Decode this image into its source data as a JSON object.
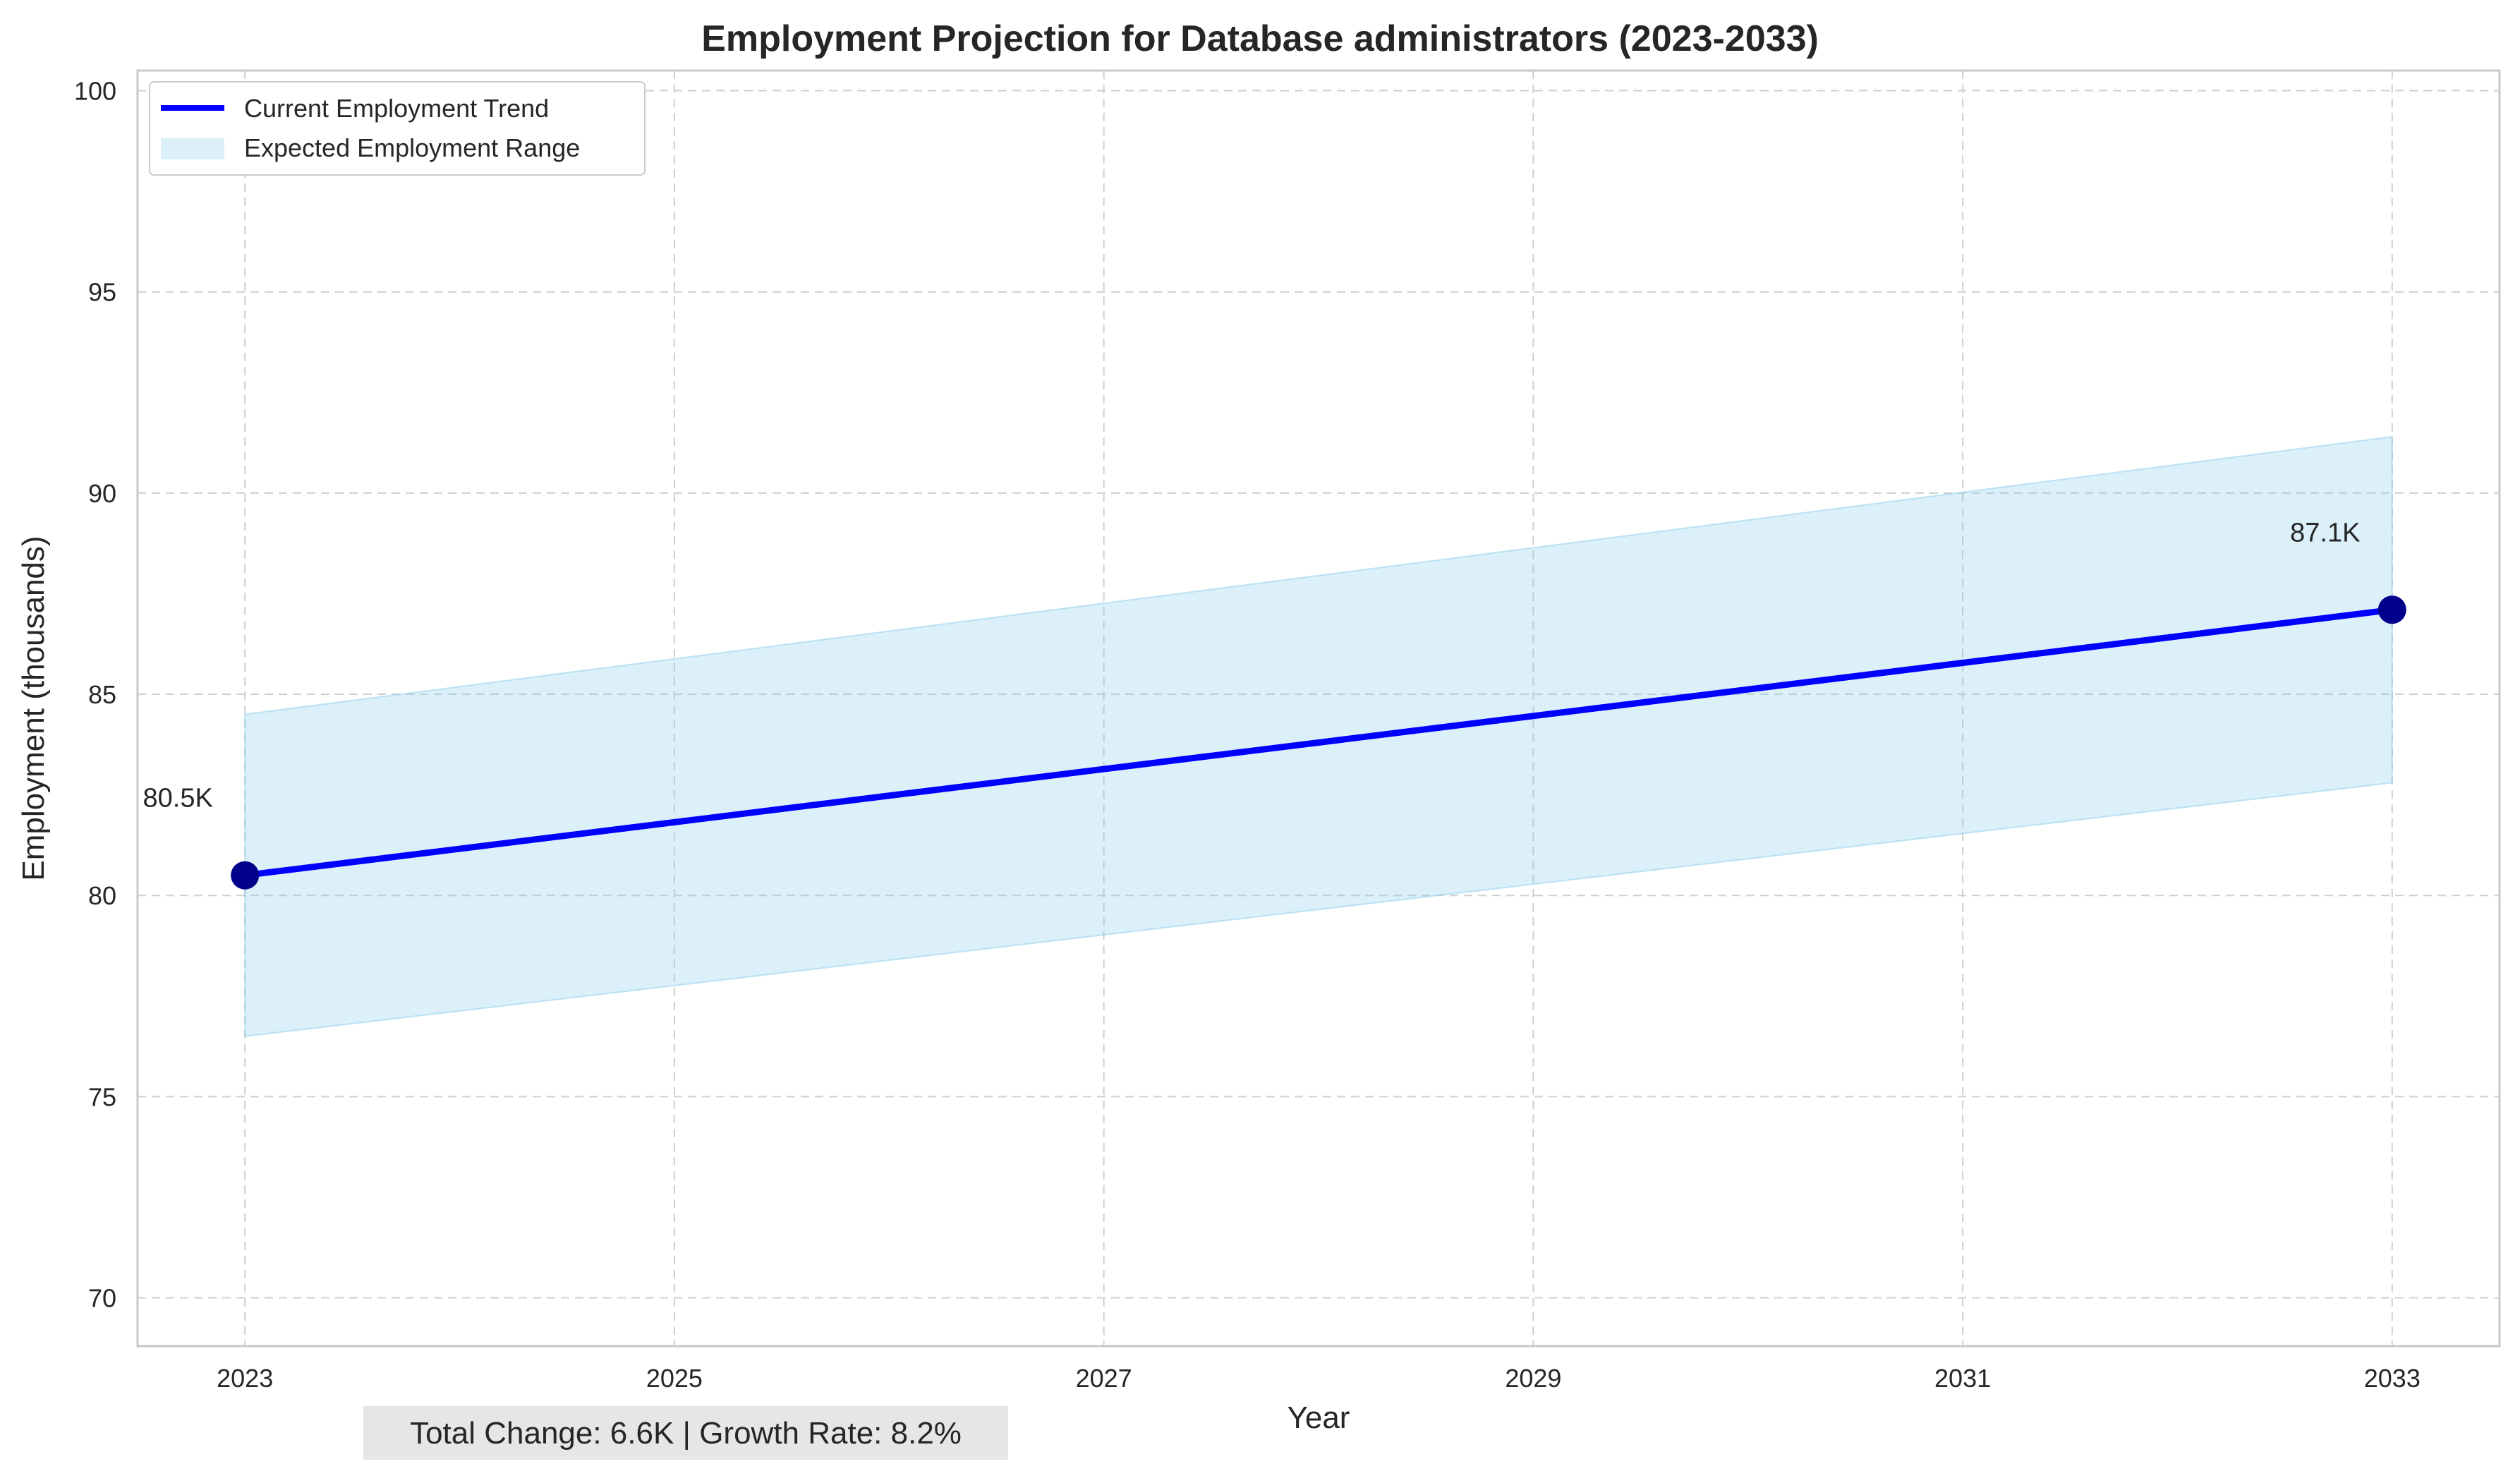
{
  "chart_data": {
    "type": "line",
    "title": "Employment Projection for Database administrators (2023-2033)",
    "xlabel": "Year",
    "ylabel": "Employment (thousands)",
    "x": [
      2023,
      2033
    ],
    "series": [
      {
        "name": "Current Employment Trend",
        "values": [
          80.5,
          87.1
        ],
        "color": "#0000ff",
        "marker_color": "#00008b"
      }
    ],
    "range": {
      "name": "Expected Employment Range",
      "x": [
        2023,
        2033
      ],
      "lower": [
        76.5,
        82.8
      ],
      "upper": [
        84.5,
        91.4
      ],
      "color": "#87ceeb"
    },
    "data_labels": [
      "80.5K",
      "87.1K"
    ],
    "xticks": [
      2023,
      2025,
      2027,
      2029,
      2031,
      2033
    ],
    "xtick_labels": [
      "2023",
      "2025",
      "2027",
      "2029",
      "2031",
      "2033"
    ],
    "yticks": [
      70,
      75,
      80,
      85,
      90,
      95,
      100
    ],
    "ytick_labels": [
      "70",
      "75",
      "80",
      "85",
      "90",
      "95",
      "100"
    ],
    "xlim": [
      2022.5,
      2033.5
    ],
    "ylim": [
      68.8,
      100.5
    ],
    "grid": true,
    "legend_position": "top-left",
    "summary": "Total Change: 6.6K | Growth Rate: 8.2%"
  }
}
